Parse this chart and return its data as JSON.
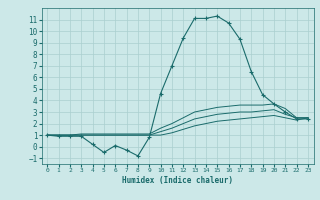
{
  "xlabel": "Humidex (Indice chaleur)",
  "bg_color": "#cce8e8",
  "grid_color": "#aacfcf",
  "line_color": "#1a6b6b",
  "x_values": [
    0,
    1,
    2,
    3,
    4,
    5,
    6,
    7,
    8,
    9,
    10,
    11,
    12,
    13,
    14,
    15,
    16,
    17,
    18,
    19,
    20,
    21,
    22,
    23
  ],
  "series1": [
    1.0,
    0.9,
    0.9,
    0.9,
    0.2,
    -0.5,
    0.1,
    -0.3,
    -0.8,
    0.8,
    4.6,
    7.0,
    9.4,
    11.1,
    11.1,
    11.3,
    10.7,
    9.3,
    6.5,
    4.5,
    3.7,
    3.0,
    2.4,
    2.4
  ],
  "series2": [
    1.0,
    1.0,
    1.0,
    1.1,
    1.1,
    1.1,
    1.1,
    1.1,
    1.1,
    1.1,
    1.6,
    2.0,
    2.5,
    3.0,
    3.2,
    3.4,
    3.5,
    3.6,
    3.6,
    3.6,
    3.7,
    3.3,
    2.5,
    2.5
  ],
  "series3": [
    1.0,
    1.0,
    1.0,
    1.0,
    1.0,
    1.0,
    1.0,
    1.0,
    1.0,
    1.0,
    1.3,
    1.6,
    2.0,
    2.4,
    2.6,
    2.8,
    2.9,
    3.0,
    3.0,
    3.1,
    3.2,
    2.8,
    2.5,
    2.5
  ],
  "series4": [
    1.0,
    1.0,
    1.0,
    1.0,
    1.0,
    1.0,
    1.0,
    1.0,
    1.0,
    1.0,
    1.0,
    1.2,
    1.5,
    1.8,
    2.0,
    2.2,
    2.3,
    2.4,
    2.5,
    2.6,
    2.7,
    2.5,
    2.3,
    2.5
  ],
  "xlim": [
    -0.5,
    23.5
  ],
  "ylim": [
    -1.5,
    12.0
  ],
  "yticks": [
    -1,
    0,
    1,
    2,
    3,
    4,
    5,
    6,
    7,
    8,
    9,
    10,
    11
  ],
  "xticks": [
    0,
    1,
    2,
    3,
    4,
    5,
    6,
    7,
    8,
    9,
    10,
    11,
    12,
    13,
    14,
    15,
    16,
    17,
    18,
    19,
    20,
    21,
    22,
    23
  ]
}
